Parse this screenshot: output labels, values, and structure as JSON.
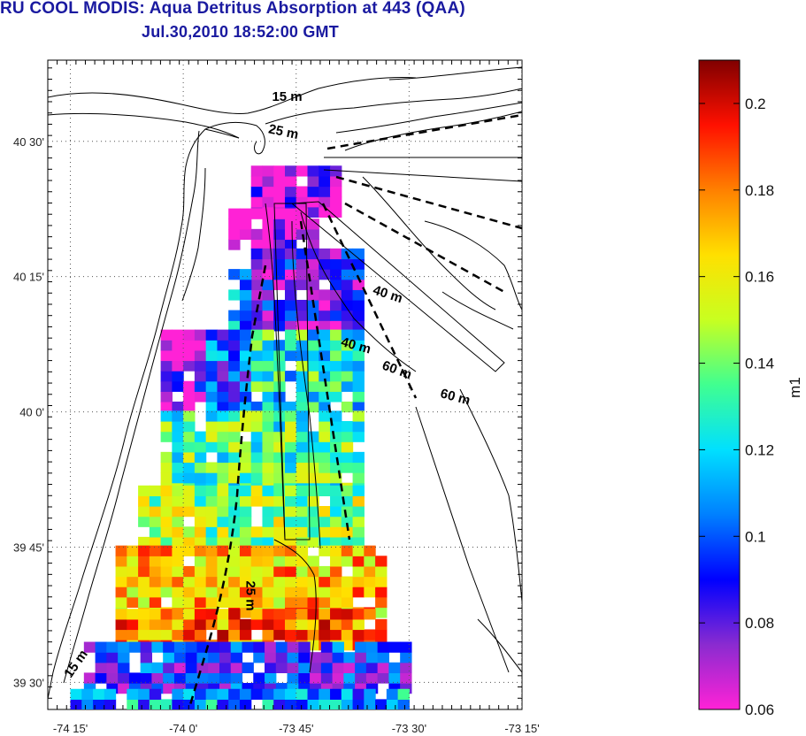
{
  "header": {
    "title": "RU COOL MODIS: Aqua Detritus Absorption at 443 (QAA)",
    "subtitle": "Jul.30,2010 18:52:00 GMT"
  },
  "map": {
    "lon_labels": [
      "-74 15'",
      "-74 0'",
      "-73 45'",
      "-73 30'",
      "-73 15'"
    ],
    "lat_labels": [
      "40 30'",
      "40 15'",
      "40 0'",
      "39 45'",
      "39 30'"
    ],
    "lon_range": [
      -74.3,
      -73.25
    ],
    "lat_range": [
      39.45,
      40.65
    ],
    "isobath_labels": [
      {
        "text": "15 m",
        "lon": -73.77,
        "lat": 40.575
      },
      {
        "text": "25 m",
        "lon": -73.78,
        "lat": 40.51
      },
      {
        "text": "40 m",
        "lon": -73.55,
        "lat": 40.21
      },
      {
        "text": "40 m",
        "lon": -73.62,
        "lat": 40.115
      },
      {
        "text": "60 m",
        "lon": -73.53,
        "lat": 40.07
      },
      {
        "text": "60 m",
        "lon": -73.4,
        "lat": 40.02
      },
      {
        "text": "25 m",
        "lon": -73.86,
        "lat": 39.66
      },
      {
        "text": "15 m",
        "lon": -74.23,
        "lat": 39.53
      }
    ]
  },
  "colorbar": {
    "unit": "m1",
    "min": 0.06,
    "max": 0.21,
    "tick_labels": [
      "0.2",
      "0.18",
      "0.16",
      "0.14",
      "0.12",
      "0.1",
      "0.08",
      "0.06"
    ],
    "tick_values": [
      0.2,
      0.18,
      0.16,
      0.14,
      0.12,
      0.1,
      0.08,
      0.06
    ],
    "colormap": [
      "#ff22d6",
      "#8a2bd0",
      "#0000ff",
      "#0080ff",
      "#00e0ff",
      "#40ff90",
      "#c8ff20",
      "#ffe000",
      "#ff8000",
      "#ff1000",
      "#800000"
    ]
  },
  "chart_data": {
    "type": "heatmap",
    "title": "RU COOL MODIS: Aqua Detritus Absorption at 443 (QAA)",
    "subtitle": "Jul.30,2010 18:52:00 GMT",
    "xlabel": "",
    "ylabel": "",
    "colorbar_label": "m1",
    "x_tick_labels": [
      "-74 15'",
      "-74 0'",
      "-73 45'",
      "-73 30'",
      "-73 15'"
    ],
    "y_tick_labels": [
      "40 30'",
      "40 15'",
      "40 0'",
      "39 45'",
      "39 30'"
    ],
    "zlim": [
      0.06,
      0.21
    ],
    "grid": true,
    "regions": [
      {
        "lat": [
          40.36,
          40.44
        ],
        "lon": [
          -73.85,
          -73.67
        ],
        "value": 0.066
      },
      {
        "lat": [
          40.3,
          40.36
        ],
        "lon": [
          -73.9,
          -73.7
        ],
        "value": 0.065
      },
      {
        "lat": [
          40.15,
          40.3
        ],
        "lon": [
          -73.85,
          -73.6
        ],
        "value": 0.082
      },
      {
        "lat": [
          40.15,
          40.25
        ],
        "lon": [
          -73.9,
          -73.85
        ],
        "value": 0.11
      },
      {
        "lat": [
          40.0,
          40.15
        ],
        "lon": [
          -74.05,
          -73.95
        ],
        "value": 0.072
      },
      {
        "lat": [
          40.0,
          40.15
        ],
        "lon": [
          -73.95,
          -73.85
        ],
        "value": 0.1
      },
      {
        "lat": [
          40.0,
          40.15
        ],
        "lon": [
          -73.85,
          -73.6
        ],
        "value": 0.125
      },
      {
        "lat": [
          39.85,
          40.0
        ],
        "lon": [
          -74.05,
          -73.6
        ],
        "value": 0.135
      },
      {
        "lat": [
          39.75,
          39.85
        ],
        "lon": [
          -74.1,
          -73.6
        ],
        "value": 0.145
      },
      {
        "lat": [
          39.62,
          39.75
        ],
        "lon": [
          -74.15,
          -73.55
        ],
        "value": 0.17
      },
      {
        "lat": [
          39.56,
          39.62
        ],
        "lon": [
          -74.15,
          -73.55
        ],
        "value": 0.18
      },
      {
        "lat": [
          39.48,
          39.56
        ],
        "lon": [
          -74.22,
          -73.5
        ],
        "value": 0.09
      },
      {
        "lat": [
          39.45,
          39.48
        ],
        "lon": [
          -74.25,
          -73.5
        ],
        "value": 0.11
      }
    ]
  }
}
